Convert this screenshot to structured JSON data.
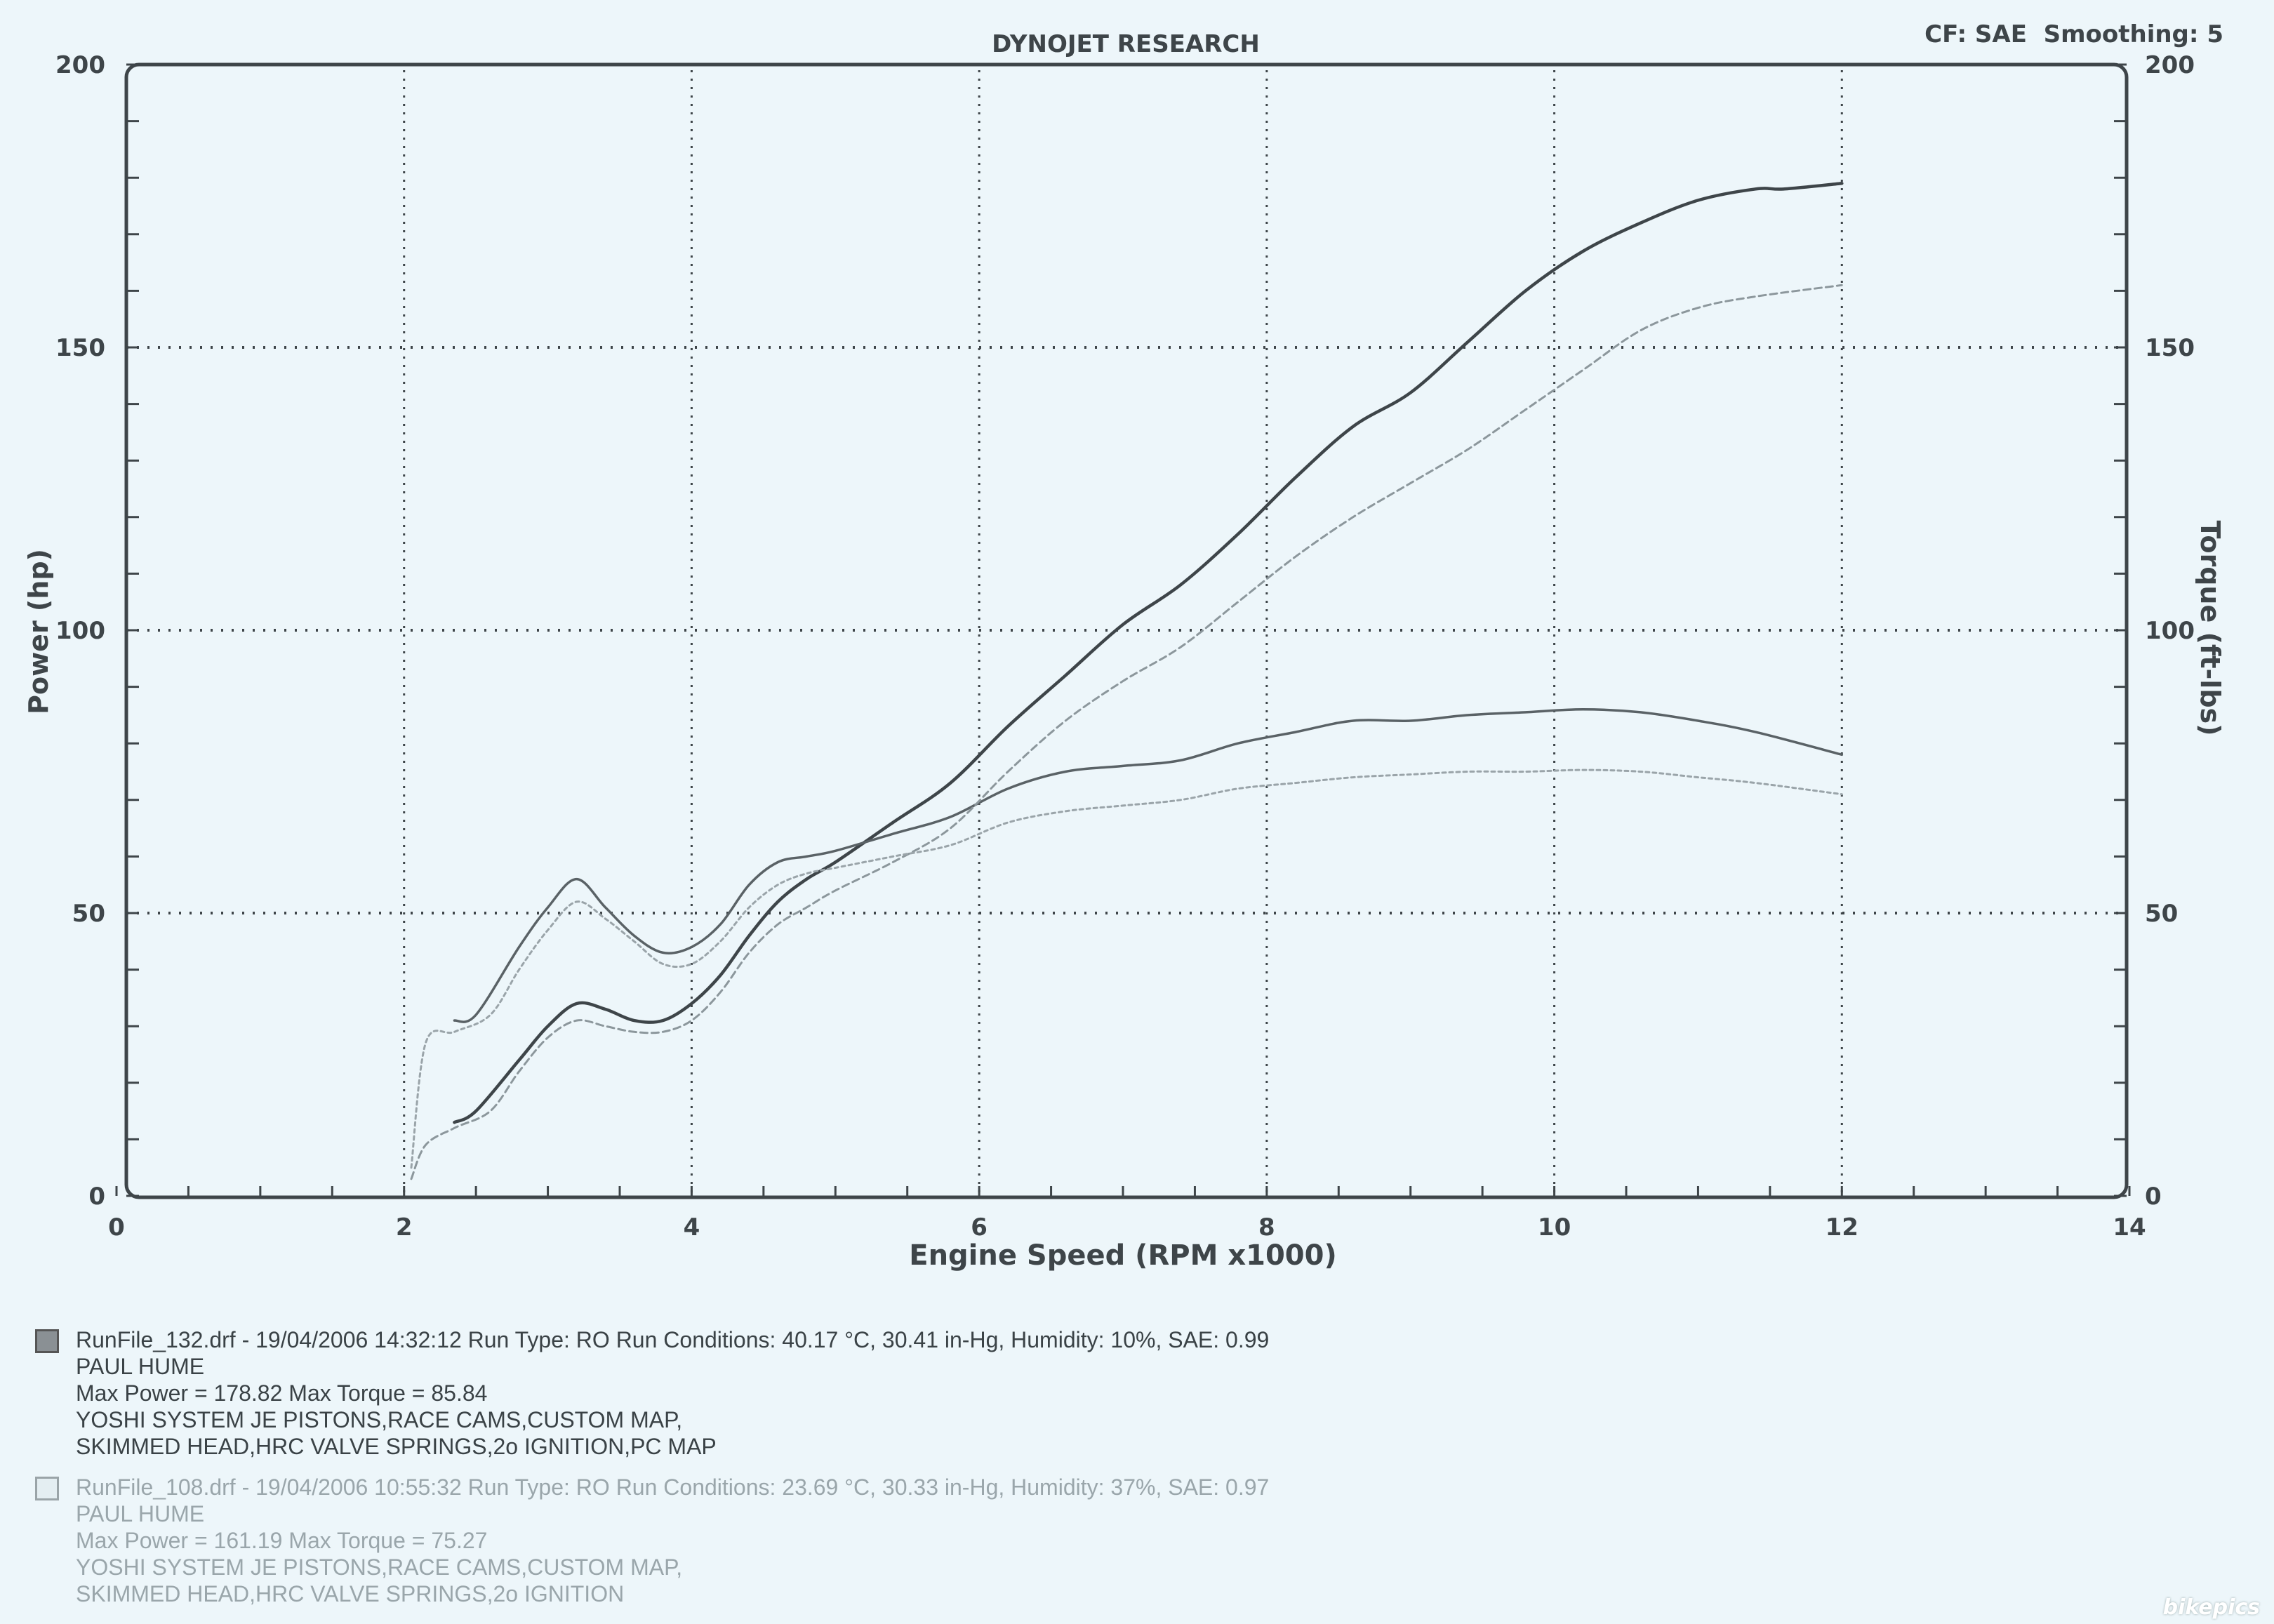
{
  "header": {
    "title": "DYNOJET RESEARCH",
    "settings": "CF: SAE  Smoothing: 5"
  },
  "chart_data": {
    "type": "line",
    "title": "DYNOJET RESEARCH",
    "xlabel": "Engine Speed (RPM x1000)",
    "ylabel": "Power (hp)",
    "y2label": "Torque (ft-lbs)",
    "xlim": [
      0,
      14
    ],
    "ylim": [
      0,
      200
    ],
    "y2lim": [
      0,
      200
    ],
    "x_ticks": [
      "0",
      "2",
      "4",
      "6",
      "8",
      "10",
      "12",
      "14"
    ],
    "y_ticks": [
      "0",
      "50",
      "100",
      "150",
      "200"
    ],
    "y2_ticks": [
      "0",
      "50",
      "100",
      "150",
      "200"
    ],
    "grid": true,
    "series": [
      {
        "name": "RunFile_132 Power",
        "axis": "left",
        "color": "#3e4549",
        "dash": "solid",
        "x": [
          2.35,
          2.5,
          2.8,
          3.0,
          3.2,
          3.4,
          3.6,
          3.8,
          4.0,
          4.2,
          4.4,
          4.6,
          4.8,
          5.0,
          5.4,
          5.8,
          6.2,
          6.6,
          7.0,
          7.4,
          7.8,
          8.2,
          8.6,
          9.0,
          9.4,
          9.8,
          10.2,
          10.6,
          11.0,
          11.4,
          11.6,
          12.0
        ],
        "y": [
          13,
          15,
          24,
          30,
          34,
          33,
          31,
          31,
          34,
          39,
          46,
          52,
          56,
          59,
          66,
          73,
          83,
          92,
          101,
          108,
          117,
          127,
          136,
          142,
          151,
          160,
          167,
          172,
          176,
          178,
          178,
          179
        ]
      },
      {
        "name": "RunFile_132 Torque",
        "axis": "right",
        "color": "#5a6266",
        "dash": "solid",
        "x": [
          2.35,
          2.5,
          2.8,
          3.0,
          3.2,
          3.4,
          3.6,
          3.8,
          4.0,
          4.2,
          4.4,
          4.6,
          4.8,
          5.0,
          5.4,
          5.8,
          6.2,
          6.6,
          7.0,
          7.4,
          7.8,
          8.2,
          8.6,
          9.0,
          9.4,
          9.8,
          10.2,
          10.6,
          11.0,
          11.4,
          12.0
        ],
        "y": [
          31,
          32,
          44,
          51,
          56,
          51,
          46,
          43,
          44,
          48,
          55,
          59,
          60,
          61,
          64,
          67,
          72,
          75,
          76,
          77,
          80,
          82,
          84,
          84,
          85,
          85.5,
          86,
          85.5,
          84,
          82,
          78
        ]
      },
      {
        "name": "RunFile_108 Power",
        "axis": "left",
        "color": "#8c979c",
        "dash": "dashed",
        "x": [
          2.05,
          2.15,
          2.35,
          2.6,
          2.8,
          3.0,
          3.2,
          3.4,
          3.6,
          3.8,
          4.0,
          4.2,
          4.4,
          4.6,
          4.8,
          5.0,
          5.4,
          5.8,
          6.2,
          6.6,
          7.0,
          7.4,
          7.8,
          8.2,
          8.6,
          9.0,
          9.4,
          9.8,
          10.2,
          10.6,
          11.0,
          11.4,
          12.0
        ],
        "y": [
          3,
          9,
          12,
          15,
          22,
          28,
          31,
          30,
          29,
          29,
          31,
          36,
          43,
          48,
          51,
          54,
          59,
          65,
          75,
          84,
          91,
          97,
          105,
          113,
          120,
          126,
          132,
          139,
          146,
          153,
          157,
          159,
          161
        ]
      },
      {
        "name": "RunFile_108 Torque",
        "axis": "right",
        "color": "#9aa4a9",
        "dash": "dotted",
        "x": [
          2.05,
          2.15,
          2.35,
          2.6,
          2.8,
          3.0,
          3.2,
          3.4,
          3.6,
          3.8,
          4.0,
          4.2,
          4.4,
          4.6,
          4.8,
          5.0,
          5.4,
          5.8,
          6.2,
          6.6,
          7.0,
          7.4,
          7.8,
          8.2,
          8.6,
          9.0,
          9.4,
          9.8,
          10.2,
          10.6,
          11.0,
          11.4,
          12.0
        ],
        "y": [
          5,
          27,
          29,
          32,
          40,
          47,
          52,
          49,
          45,
          41,
          41,
          45,
          51,
          55,
          57,
          58,
          60,
          62,
          66,
          68,
          69,
          70,
          72,
          73,
          74,
          74.5,
          75,
          75,
          75.3,
          75,
          74,
          73,
          71
        ]
      }
    ]
  },
  "legend": [
    {
      "line1": "RunFile_132.drf - 19/04/2006 14:32:12  Run Type: RO  Run Conditions: 40.17 °C, 30.41 in-Hg,  Humidity:  10%, SAE: 0.99",
      "line2": "PAUL HUME",
      "line3": "Max Power = 178.82  Max Torque = 85.84",
      "line4": "YOSHI SYSTEM JE PISTONS,RACE CAMS,CUSTOM MAP,",
      "line5": "SKIMMED HEAD,HRC VALVE SPRINGS,2o IGNITION,PC MAP"
    },
    {
      "line1": "RunFile_108.drf - 19/04/2006 10:55:32  Run Type: RO  Run Conditions: 23.69 °C, 30.33 in-Hg,  Humidity:  37%, SAE: 0.97",
      "line2": "PAUL HUME",
      "line3": "Max Power = 161.19  Max Torque = 75.27",
      "line4": "YOSHI SYSTEM JE PISTONS,RACE CAMS,CUSTOM MAP,",
      "line5": "SKIMMED HEAD,HRC VALVE SPRINGS,2o IGNITION"
    }
  ],
  "watermark": "bikepics"
}
